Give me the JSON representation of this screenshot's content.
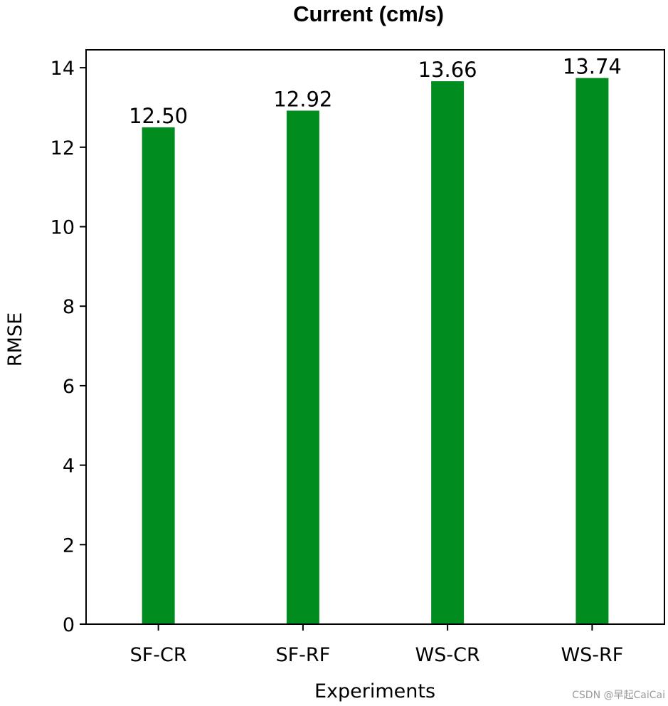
{
  "chart_data": {
    "type": "bar",
    "title": "Current (cm/s)",
    "xlabel": "Experiments",
    "ylabel": "RMSE",
    "categories": [
      "SF-CR",
      "SF-RF",
      "WS-CR",
      "WS-RF"
    ],
    "values": [
      12.5,
      12.92,
      13.66,
      13.74
    ],
    "value_labels": [
      "12.50",
      "12.92",
      "13.66",
      "13.74"
    ],
    "ylim": [
      0,
      14.45
    ],
    "yticks": [
      0,
      2,
      4,
      6,
      8,
      10,
      12,
      14
    ],
    "ytick_labels": [
      "0",
      "2",
      "4",
      "6",
      "8",
      "10",
      "12",
      "14"
    ],
    "bar_color": "#008c1e",
    "grid": false,
    "legend": "none"
  },
  "watermark": "CSDN @早起CaiCai"
}
